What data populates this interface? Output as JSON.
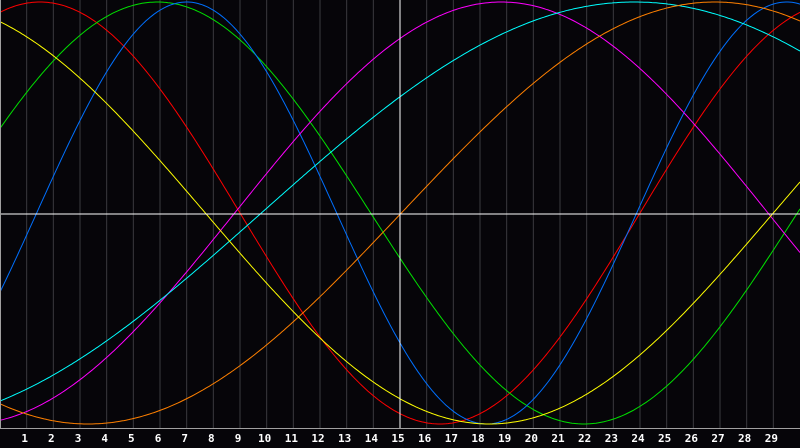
{
  "chart_data": {
    "type": "line",
    "title": "",
    "xlabel": "",
    "ylabel": "",
    "x": [
      1,
      2,
      3,
      4,
      5,
      6,
      7,
      8,
      9,
      10,
      11,
      12,
      13,
      14,
      15,
      16,
      17,
      18,
      19,
      20,
      21,
      22,
      23,
      24,
      25,
      26,
      27,
      28,
      29
    ],
    "xlim": [
      0,
      30
    ],
    "ylim": [
      -1,
      1
    ],
    "grid": true,
    "highlight_x": 15,
    "series": [
      {
        "color": "#ff0000",
        "period": 30,
        "peak_day": 1.5
      },
      {
        "color": "#00e000",
        "period": 32,
        "peak_day": 5.9
      },
      {
        "color": "#0070ff",
        "period": 22.5,
        "peak_day": 7.0
      },
      {
        "color": "#ff00ff",
        "period": 40,
        "peak_day": 18.8
      },
      {
        "color": "#00ffff",
        "period": 56,
        "peak_day": 23.8
      },
      {
        "color": "#ff8000",
        "period": 47,
        "peak_day": 26.8
      },
      {
        "color": "#ffff00",
        "period": 42.6,
        "peak_day": -2.95
      }
    ]
  }
}
